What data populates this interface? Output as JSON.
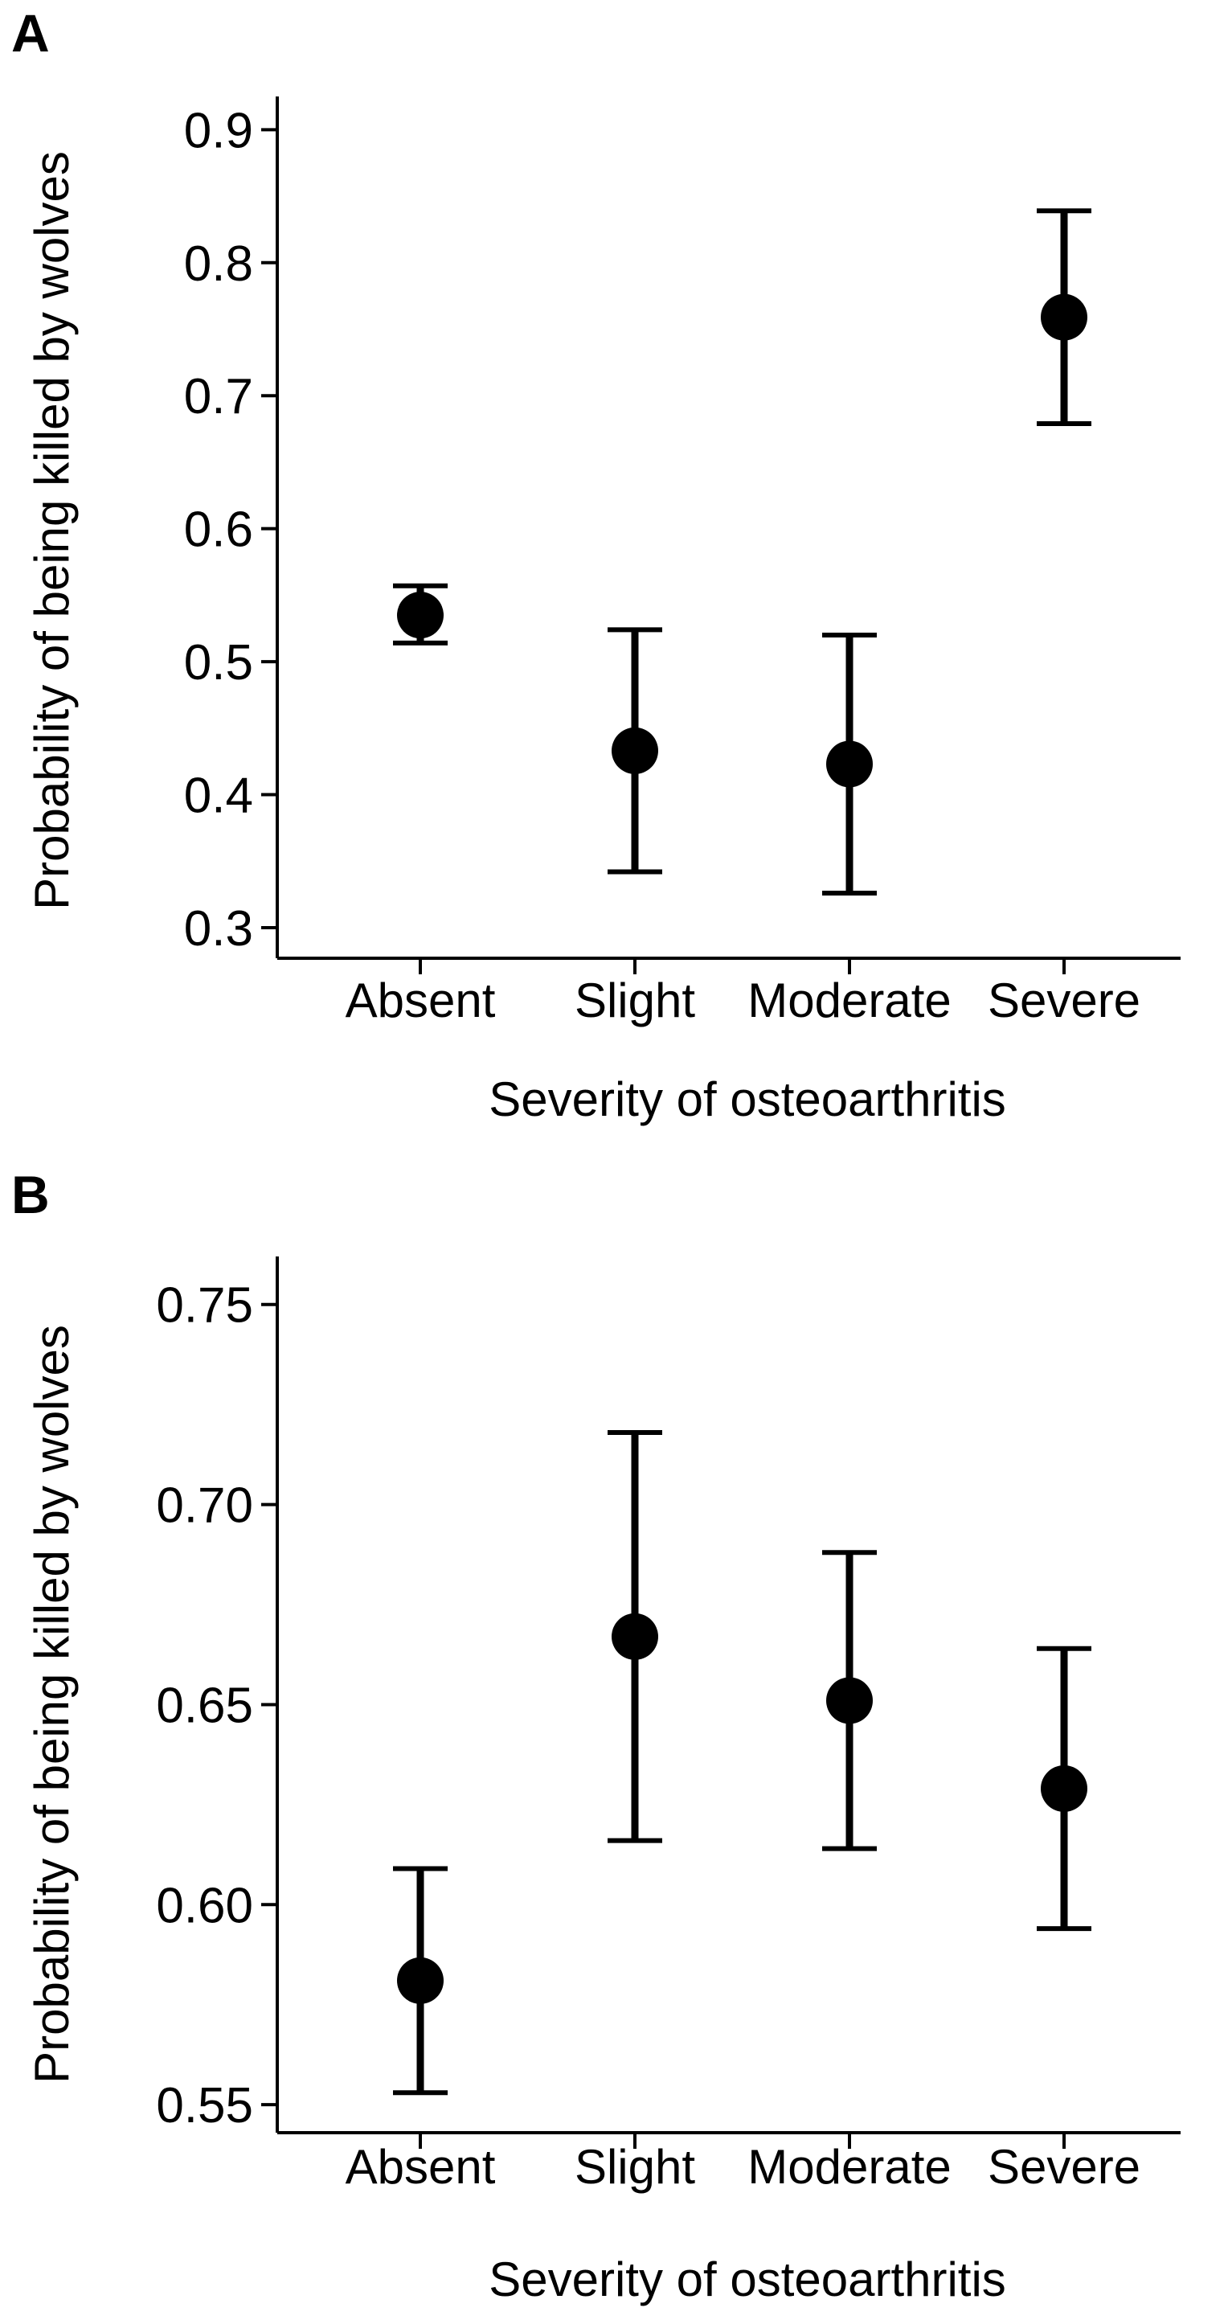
{
  "chart_data": [
    {
      "panel": "A",
      "type": "scatter",
      "xlabel": "Severity of osteoarthritis",
      "ylabel": "Probability of being killed by wolves",
      "categories": [
        "Absent",
        "Slight",
        "Moderate",
        "Severe"
      ],
      "values": [
        0.535,
        0.433,
        0.423,
        0.759
      ],
      "lower": [
        0.514,
        0.342,
        0.326,
        0.679
      ],
      "upper": [
        0.557,
        0.524,
        0.52,
        0.839
      ],
      "ylim": [
        0.277,
        0.925
      ],
      "yticks": [
        0.3,
        0.4,
        0.5,
        0.6,
        0.7,
        0.8,
        0.9
      ],
      "ytick_labels": [
        "0.3",
        "0.4",
        "0.5",
        "0.6",
        "0.7",
        "0.8",
        "0.9"
      ]
    },
    {
      "panel": "B",
      "type": "scatter",
      "xlabel": "Severity of osteoarthritis",
      "ylabel": "Probability of being killed by wolves",
      "categories": [
        "Absent",
        "Slight",
        "Moderate",
        "Severe"
      ],
      "values": [
        0.581,
        0.667,
        0.651,
        0.629
      ],
      "lower": [
        0.553,
        0.616,
        0.614,
        0.594
      ],
      "upper": [
        0.609,
        0.718,
        0.688,
        0.664
      ],
      "ylim": [
        0.543,
        0.762
      ],
      "yticks": [
        0.55,
        0.6,
        0.65,
        0.7,
        0.75
      ],
      "ytick_labels": [
        "0.55",
        "0.60",
        "0.65",
        "0.70",
        "0.75"
      ]
    }
  ]
}
